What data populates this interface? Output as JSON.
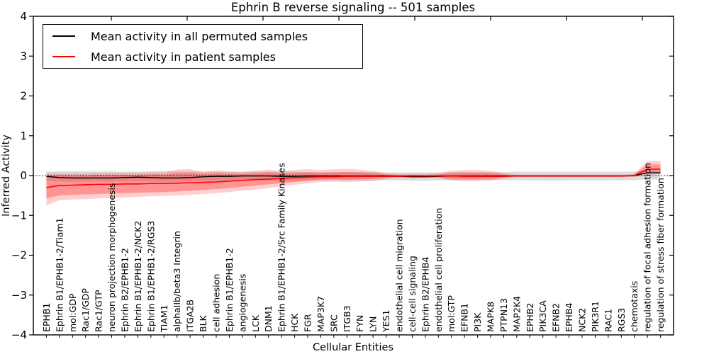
{
  "chart_data": {
    "type": "line",
    "title": "Ephrin B reverse signaling -- 501 samples",
    "xlabel": "Cellular Entities",
    "ylabel": "Inferred Activity",
    "ylim": [
      -4,
      4
    ],
    "grid": false,
    "zero_line_style": "dotted",
    "yticks": {
      "values": [
        4,
        3,
        2,
        1,
        0,
        -1,
        -2,
        -3,
        -4
      ],
      "labels": [
        "4",
        "3",
        "2",
        "1",
        "0",
        "−1",
        "−2",
        "−3",
        "−4"
      ]
    },
    "categories": [
      "EPHB1",
      "Ephrin B1/EPHB1-2/Tiam1",
      "mol:GDP",
      "Rac1/GDP",
      "Rac1/GTP",
      "neuron projection morphogenesis",
      "Ephrin B2/EPHB1-2",
      "Ephrin B1/EPHB1-2/NCK2",
      "Ephrin B1/EPHB1-2/RGS3",
      "TIAM1",
      "alphaIIb/beta3 Integrin",
      "ITGA2B",
      "BLK",
      "cell adhesion",
      "Ephrin B1/EPHB1-2",
      "angiogenesis",
      "LCK",
      "DNM1",
      "Ephrin B1/EPHB1-2/Src Family Kinases",
      "HCK",
      "FGR",
      "MAP3K7",
      "SRC",
      "ITGB3",
      "FYN",
      "LYN",
      "YES1",
      "endothelial cell migration",
      "cell-cell signaling",
      "Ephrin B2/EPHB4",
      "endothelial cell proliferation",
      "mol:GTP",
      "EFNB1",
      "PI3K",
      "MAPK8",
      "PTPN13",
      "MAP2K4",
      "EPHB2",
      "PIK3CA",
      "EFNB2",
      "EPHB4",
      "NCK2",
      "PIK3R1",
      "RAC1",
      "RGS3",
      "chemotaxis",
      "regulation of focal adhesion formation",
      "regulation of stress fiber formation"
    ],
    "legend": {
      "position": "upper left",
      "entries": [
        {
          "label": "Mean activity in all permuted samples",
          "color": "#000000"
        },
        {
          "label": "Mean activity in patient samples",
          "color": "#ff0000"
        }
      ]
    },
    "series": [
      {
        "name": "permuted-mean-line",
        "label": "Mean activity in all permuted samples",
        "color": "#000000",
        "width": 1.4,
        "values": [
          -0.02,
          -0.05,
          -0.06,
          -0.06,
          -0.06,
          -0.06,
          -0.05,
          -0.04,
          -0.05,
          -0.06,
          -0.06,
          -0.05,
          -0.03,
          -0.02,
          -0.02,
          -0.01,
          -0.01,
          -0.01,
          -0.02,
          -0.02,
          -0.01,
          -0.01,
          -0.01,
          -0.01,
          -0.01,
          -0.01,
          -0.01,
          -0.02,
          -0.03,
          -0.03,
          -0.02,
          -0.01,
          -0.01,
          -0.01,
          -0.01,
          -0.01,
          -0.01,
          -0.01,
          -0.01,
          -0.01,
          -0.01,
          -0.01,
          -0.01,
          -0.01,
          -0.01,
          0.0,
          0.07,
          0.07
        ]
      },
      {
        "name": "patient-mean-line",
        "label": "Mean activity in patient samples",
        "color": "#ff0000",
        "width": 1.6,
        "values": [
          -0.3,
          -0.25,
          -0.24,
          -0.23,
          -0.22,
          -0.22,
          -0.21,
          -0.21,
          -0.2,
          -0.2,
          -0.19,
          -0.18,
          -0.17,
          -0.16,
          -0.14,
          -0.12,
          -0.1,
          -0.09,
          -0.07,
          -0.05,
          -0.04,
          -0.03,
          -0.03,
          -0.02,
          -0.02,
          -0.02,
          -0.02,
          -0.02,
          -0.01,
          -0.01,
          -0.01,
          -0.01,
          -0.02,
          -0.02,
          -0.02,
          -0.02,
          -0.01,
          -0.01,
          -0.01,
          -0.01,
          -0.01,
          -0.01,
          -0.01,
          -0.01,
          -0.01,
          0.0,
          0.16,
          0.16
        ]
      }
    ],
    "bands": [
      {
        "name": "permuted-range-band",
        "color": "rgba(0,0,0,0.13)",
        "upper": [
          0.1,
          0.11,
          0.11,
          0.11,
          0.11,
          0.11,
          0.1,
          0.1,
          0.11,
          0.12,
          0.11,
          0.1,
          0.1,
          0.1,
          0.1,
          0.1,
          0.1,
          0.1,
          0.1,
          0.1,
          0.09,
          0.09,
          0.09,
          0.09,
          0.09,
          0.09,
          0.08,
          0.08,
          0.08,
          0.08,
          0.08,
          0.09,
          0.09,
          0.09,
          0.09,
          0.09,
          0.1,
          0.1,
          0.1,
          0.1,
          0.1,
          0.1,
          0.1,
          0.1,
          0.1,
          0.1,
          0.13,
          0.13
        ],
        "lower": [
          -0.14,
          -0.15,
          -0.15,
          -0.15,
          -0.15,
          -0.15,
          -0.14,
          -0.14,
          -0.15,
          -0.15,
          -0.15,
          -0.14,
          -0.13,
          -0.13,
          -0.12,
          -0.12,
          -0.12,
          -0.12,
          -0.13,
          -0.13,
          -0.12,
          -0.12,
          -0.12,
          -0.12,
          -0.12,
          -0.12,
          -0.12,
          -0.12,
          -0.13,
          -0.13,
          -0.12,
          -0.12,
          -0.12,
          -0.12,
          -0.12,
          -0.12,
          -0.12,
          -0.12,
          -0.13,
          -0.13,
          -0.12,
          -0.12,
          -0.13,
          -0.12,
          -0.12,
          -0.12,
          -0.1,
          -0.1
        ]
      },
      {
        "name": "patient-range-band-outer",
        "color": "rgba(255,30,30,0.22)",
        "upper": [
          0.06,
          0.06,
          0.06,
          0.06,
          0.07,
          0.07,
          0.07,
          0.07,
          0.08,
          0.08,
          0.15,
          0.16,
          0.09,
          0.13,
          0.1,
          0.09,
          0.12,
          0.15,
          0.11,
          0.14,
          0.16,
          0.14,
          0.16,
          0.17,
          0.15,
          0.12,
          0.06,
          0.04,
          0.05,
          0.04,
          0.06,
          0.12,
          0.14,
          0.14,
          0.12,
          0.06,
          0.03,
          0.03,
          0.03,
          0.03,
          0.03,
          0.03,
          0.03,
          0.03,
          0.03,
          0.04,
          0.37,
          0.37
        ],
        "lower": [
          -0.75,
          -0.62,
          -0.6,
          -0.59,
          -0.57,
          -0.56,
          -0.55,
          -0.53,
          -0.52,
          -0.51,
          -0.5,
          -0.48,
          -0.46,
          -0.44,
          -0.41,
          -0.38,
          -0.35,
          -0.31,
          -0.27,
          -0.23,
          -0.19,
          -0.16,
          -0.15,
          -0.16,
          -0.15,
          -0.14,
          -0.08,
          -0.05,
          -0.06,
          -0.05,
          -0.07,
          -0.12,
          -0.13,
          -0.13,
          -0.12,
          -0.07,
          -0.04,
          -0.04,
          -0.04,
          -0.04,
          -0.04,
          -0.04,
          -0.04,
          -0.04,
          -0.04,
          -0.03,
          0.03,
          0.03
        ]
      },
      {
        "name": "patient-range-band-inner",
        "color": "rgba(255,30,30,0.33)",
        "upper": [
          0.0,
          0.01,
          0.01,
          0.01,
          0.02,
          0.02,
          0.02,
          0.02,
          0.03,
          0.03,
          0.06,
          0.07,
          0.04,
          0.06,
          0.05,
          0.04,
          0.06,
          0.08,
          0.05,
          0.07,
          0.08,
          0.07,
          0.08,
          0.09,
          0.08,
          0.06,
          0.03,
          0.01,
          0.02,
          0.01,
          0.03,
          0.06,
          0.07,
          0.07,
          0.06,
          0.03,
          0.01,
          0.01,
          0.01,
          0.01,
          0.01,
          0.01,
          0.01,
          0.01,
          0.01,
          0.02,
          0.28,
          0.28
        ],
        "lower": [
          -0.57,
          -0.5,
          -0.48,
          -0.47,
          -0.46,
          -0.45,
          -0.44,
          -0.43,
          -0.42,
          -0.41,
          -0.4,
          -0.38,
          -0.36,
          -0.34,
          -0.31,
          -0.28,
          -0.25,
          -0.22,
          -0.19,
          -0.16,
          -0.13,
          -0.1,
          -0.09,
          -0.1,
          -0.09,
          -0.08,
          -0.05,
          -0.03,
          -0.04,
          -0.03,
          -0.04,
          -0.08,
          -0.08,
          -0.08,
          -0.08,
          -0.04,
          -0.02,
          -0.02,
          -0.02,
          -0.02,
          -0.02,
          -0.02,
          -0.02,
          -0.02,
          -0.02,
          -0.02,
          0.09,
          0.09
        ]
      }
    ]
  }
}
